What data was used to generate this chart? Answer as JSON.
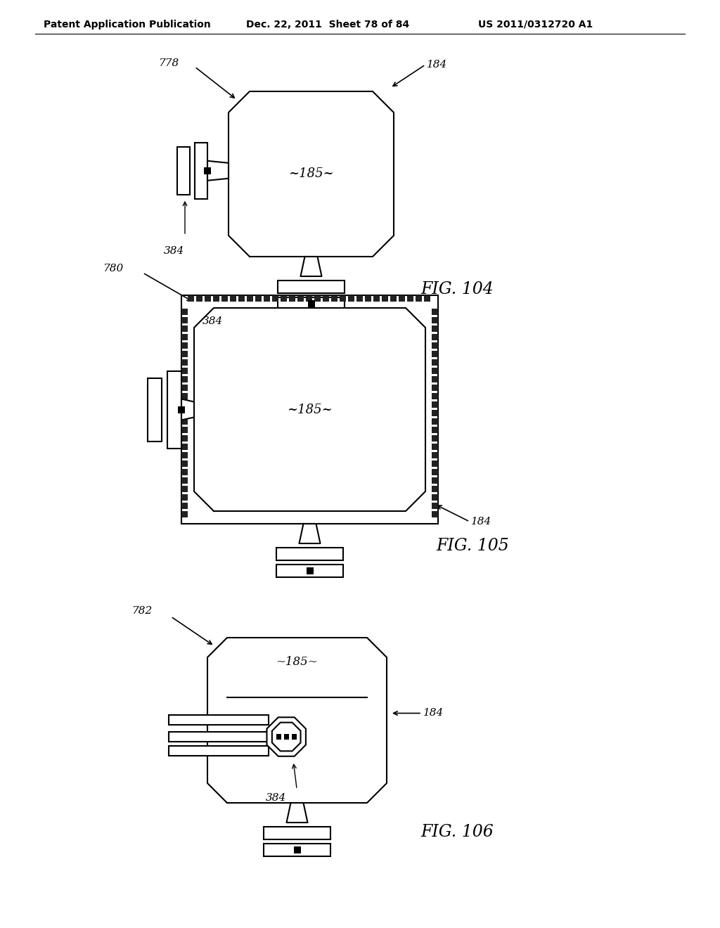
{
  "bg_color": "#ffffff",
  "line_color": "#000000",
  "header_left": "Patent Application Publication",
  "header_mid": "Dec. 22, 2011  Sheet 78 of 84",
  "header_right": "US 2011/0312720 A1",
  "fig104_label": "FIG. 104",
  "fig105_label": "FIG. 105",
  "fig106_label": "FIG. 106"
}
